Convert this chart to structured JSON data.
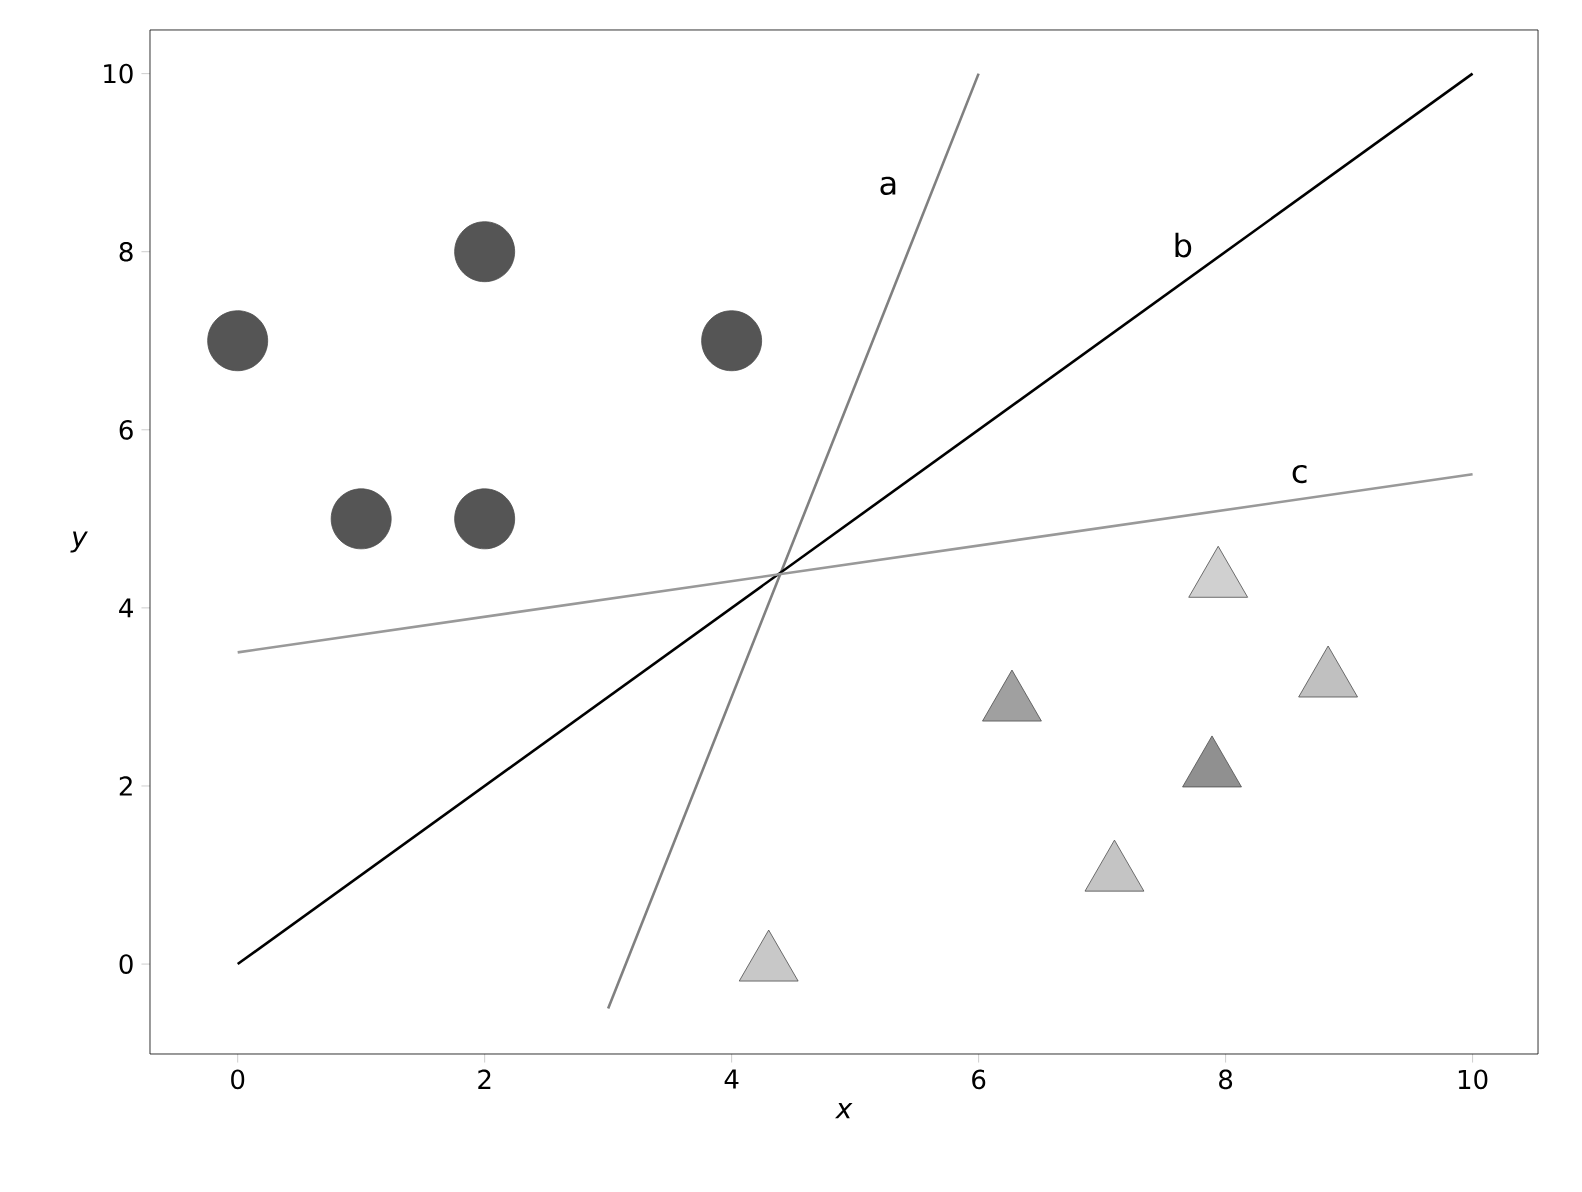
{
  "chart_data": {
    "type": "scatter",
    "xlabel": "x",
    "ylabel": "y",
    "xlim": [
      -0.71,
      10.53
    ],
    "ylim": [
      -1.01,
      10.49
    ],
    "xticks": [
      0,
      2,
      4,
      6,
      8,
      10
    ],
    "yticks": [
      0,
      2,
      4,
      6,
      8,
      10
    ],
    "grid": false,
    "series": [
      {
        "marker": "circle",
        "color": "#555555",
        "x": [
          0,
          1,
          2,
          2,
          4
        ],
        "values": [
          7,
          5,
          8,
          5,
          7
        ]
      },
      {
        "marker": "triangle",
        "colors": [
          "#c8c8c8",
          "#a0a0a0",
          "#d0d0d0",
          "#c0c0c0",
          "#909090",
          "#c4c4c4"
        ],
        "x": [
          4.3,
          6.27,
          7.94,
          8.83,
          7.89,
          7.1
        ],
        "values": [
          0,
          2.92,
          4.31,
          3.19,
          2.18,
          1.01
        ]
      },
      {
        "type": "line",
        "name": "a",
        "color": "#808080",
        "x": [
          3,
          6
        ],
        "values": [
          -0.5,
          10
        ]
      },
      {
        "type": "line",
        "name": "b",
        "color": "#000000",
        "x": [
          0,
          10
        ],
        "values": [
          0,
          10
        ]
      },
      {
        "type": "line",
        "name": "c",
        "color": "#999999",
        "x": [
          0,
          10
        ],
        "values": [
          3.5,
          5.5
        ]
      }
    ]
  }
}
